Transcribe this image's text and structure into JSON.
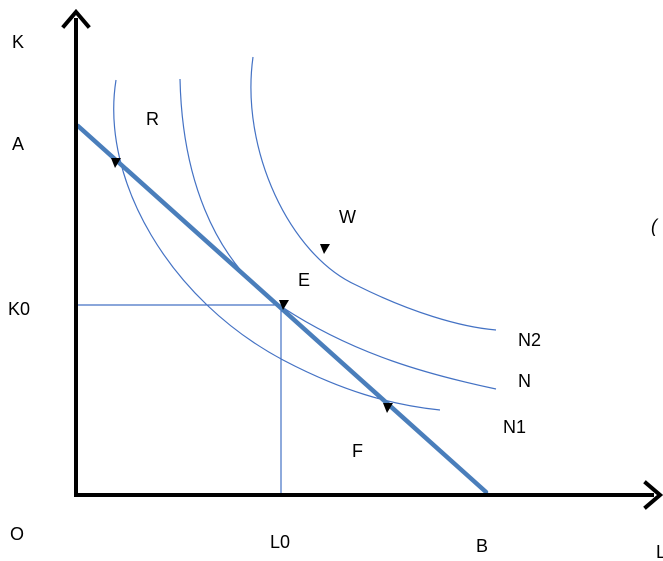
{
  "colors": {
    "axis": "#000000",
    "curve": "#4472C4",
    "budget_line": "#4a7ebb",
    "text": "#000000"
  },
  "axes": {
    "y_label": "K",
    "x_label": "L",
    "origin_label": "O"
  },
  "intercepts": {
    "y_intercept_label": "A",
    "x_intercept_label": "B"
  },
  "equilibrium": {
    "k_label": "K0",
    "l_label": "L0"
  },
  "points": {
    "r": "R",
    "w": "W",
    "e": "E",
    "f": "F"
  },
  "curves": {
    "n2": "N2",
    "n": "N",
    "n1": "N1"
  },
  "stray_glyph": "("
}
